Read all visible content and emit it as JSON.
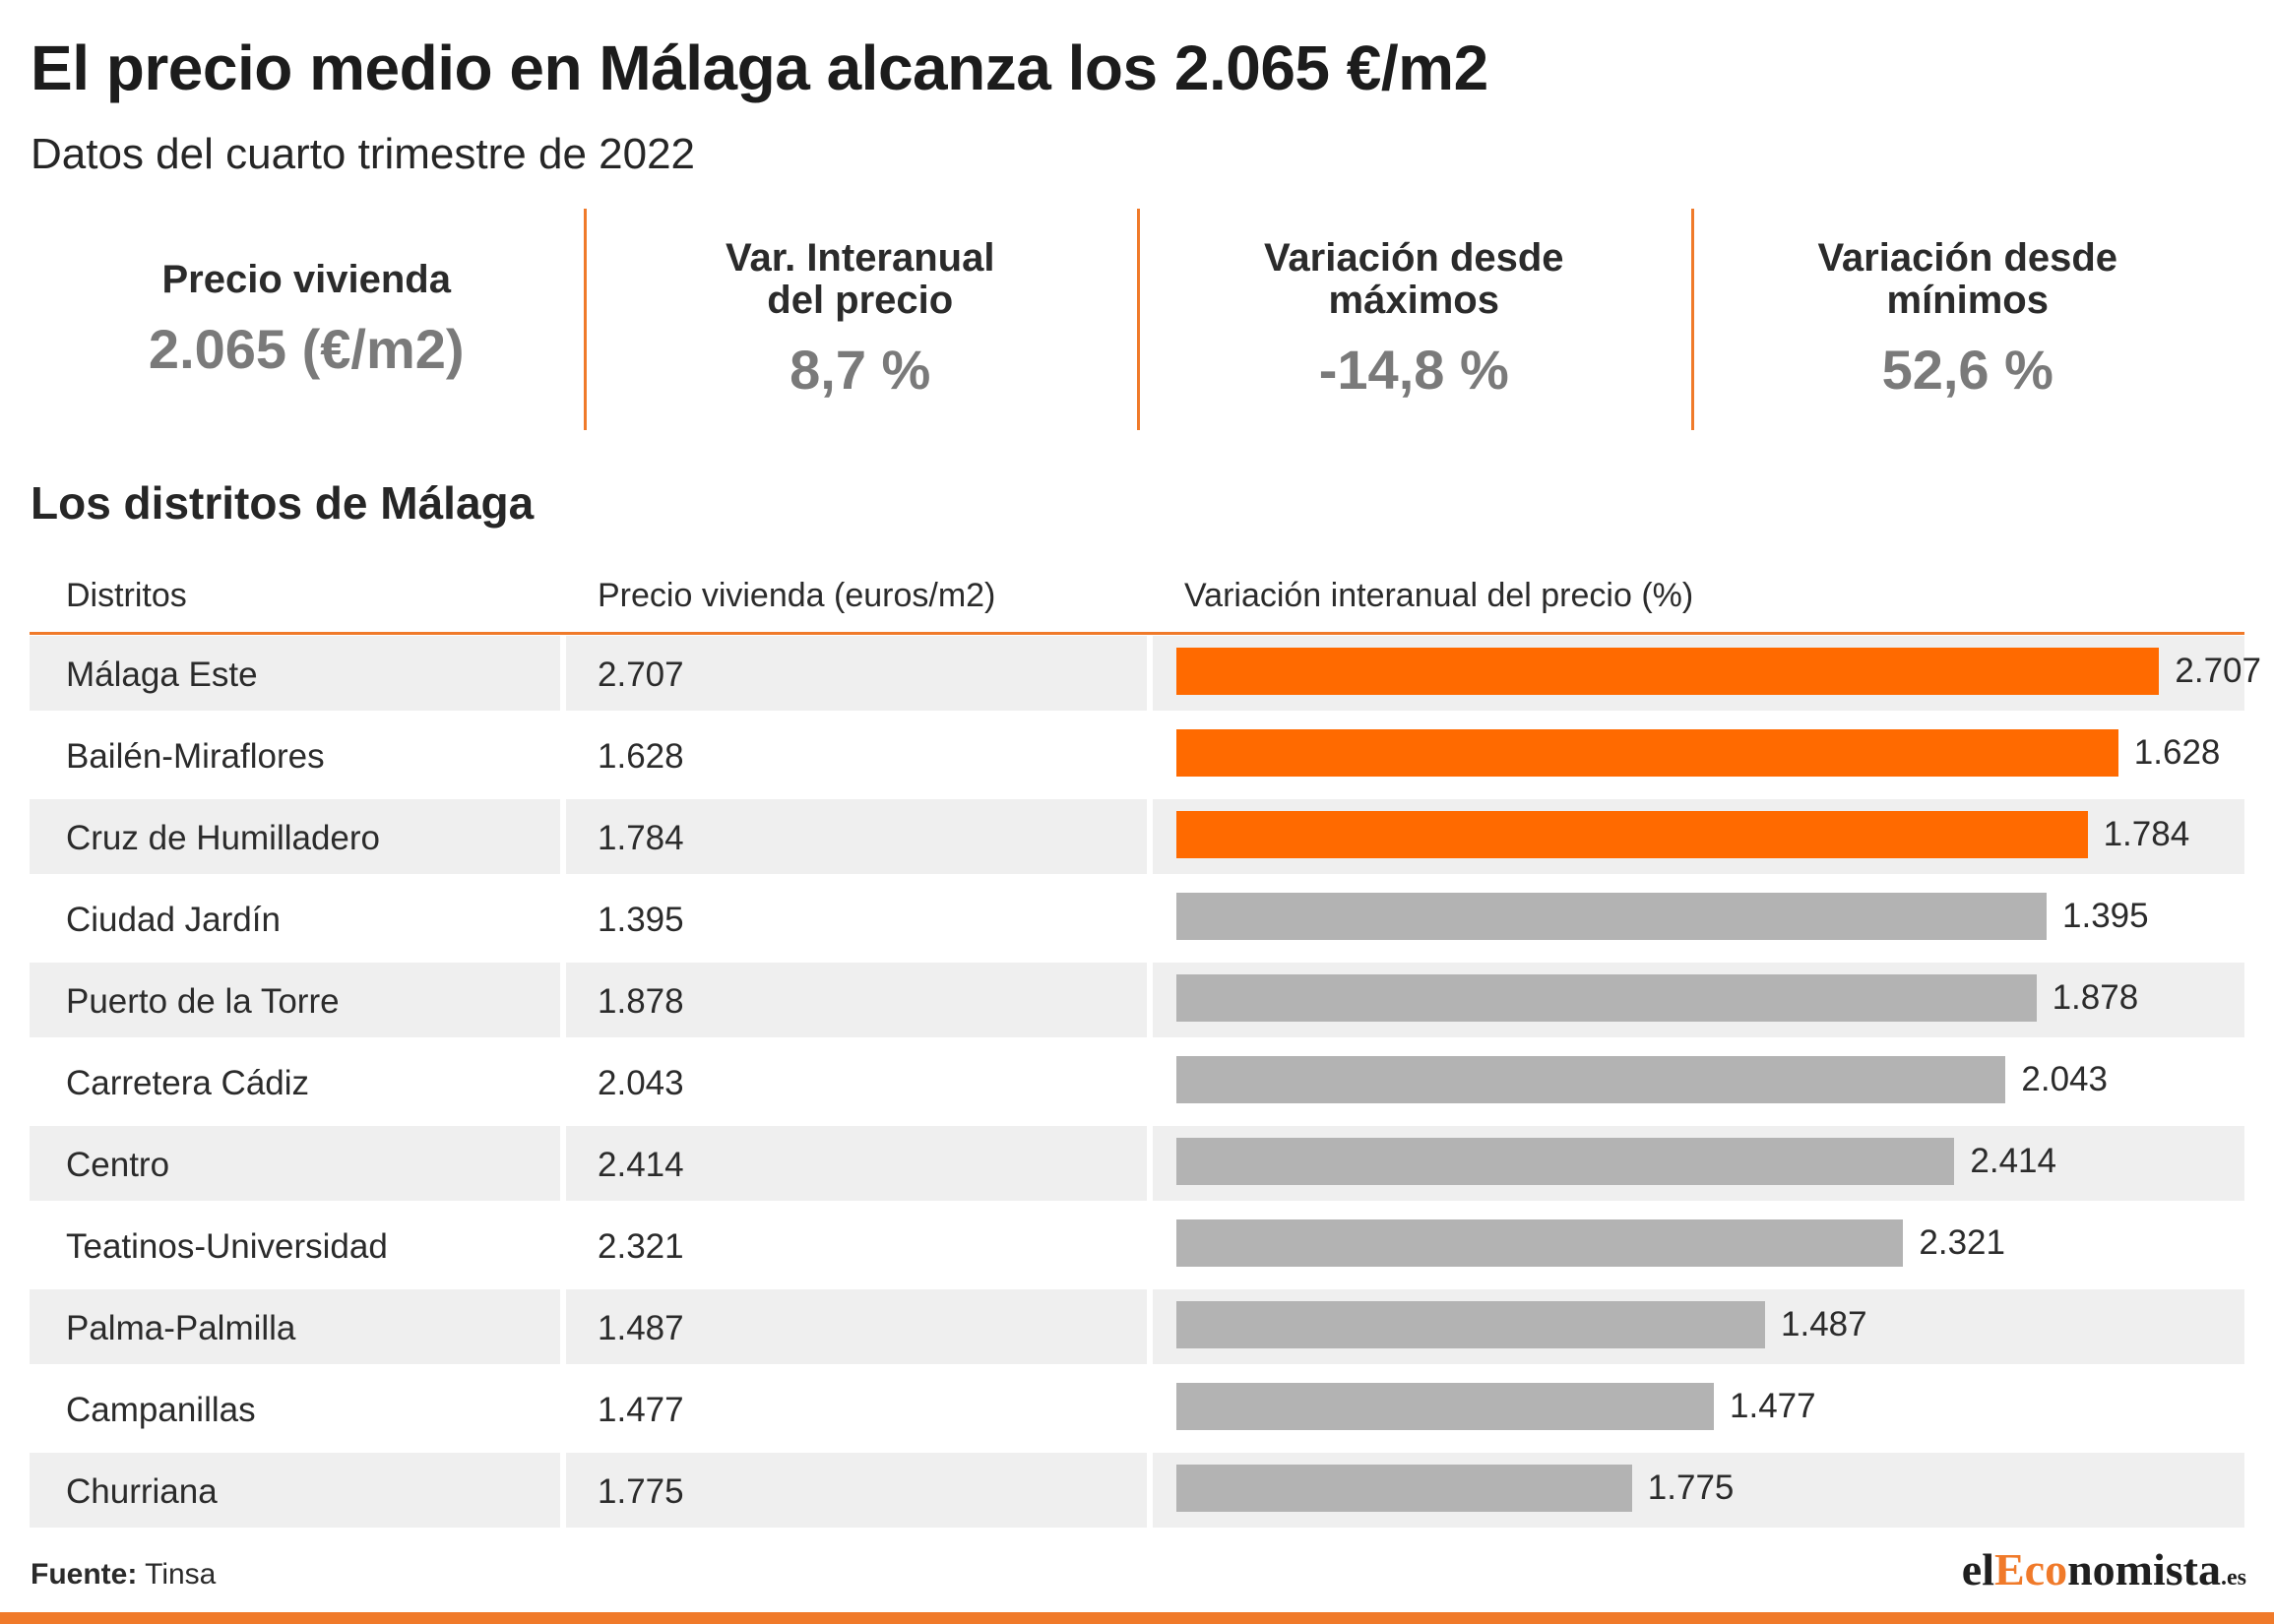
{
  "header": {
    "title": "El precio medio en Málaga alcanza los 2.065 €/m2",
    "subtitle": "Datos del cuarto trimestre de 2022"
  },
  "kpis": [
    {
      "label": "Precio vivienda",
      "value": "2.065 (€/m2)"
    },
    {
      "label": "Var. Interanual\ndel precio",
      "value": "8,7 %"
    },
    {
      "label": "Variación desde\nmáximos",
      "value": "-14,8 %"
    },
    {
      "label": "Variación desde\nmínimos",
      "value": "52,6 %"
    }
  ],
  "section_title": "Los distritos de Málaga",
  "table": {
    "headers": [
      "Distritos",
      "Precio vivienda (euros/m2)",
      "Variación interanual del precio (%)"
    ]
  },
  "colors": {
    "accent": "#f07a2a",
    "highlight_bar": "#ff6a00",
    "normal_bar": "#b3b3b3",
    "row_shade": "#efefef"
  },
  "chart_data": {
    "type": "bar",
    "categories": [
      "Málaga Este",
      "Bailén-Miraflores",
      "Cruz de Humilladero",
      "Ciudad Jardín",
      "Puerto de la Torre",
      "Carretera Cádiz",
      "Centro",
      "Teatinos-Universidad",
      "Palma-Palmilla",
      "Campanillas",
      "Churriana"
    ],
    "prices": [
      "2.707",
      "1.628",
      "1.784",
      "1.395",
      "1.878",
      "2.043",
      "2.414",
      "2.321",
      "1.487",
      "1.477",
      "1.775"
    ],
    "bar_labels": [
      "2.707",
      "1.628",
      "1.784",
      "1.395",
      "1.878",
      "2.043",
      "2.414",
      "2.321",
      "1.487",
      "1.477",
      "1.775"
    ],
    "values": [
      19.2,
      18.4,
      17.8,
      17.0,
      16.8,
      16.2,
      15.2,
      14.2,
      11.5,
      10.5,
      8.9
    ],
    "highlighted": [
      true,
      true,
      true,
      false,
      false,
      false,
      false,
      false,
      false,
      false,
      false
    ],
    "xlim": [
      0,
      20
    ]
  },
  "footer": {
    "source_label": "Fuente:",
    "source_value": " Tinsa",
    "logo_pre": "el",
    "logo_accent": "Eco",
    "logo_post": "nomista",
    "logo_suffix": ".es"
  }
}
